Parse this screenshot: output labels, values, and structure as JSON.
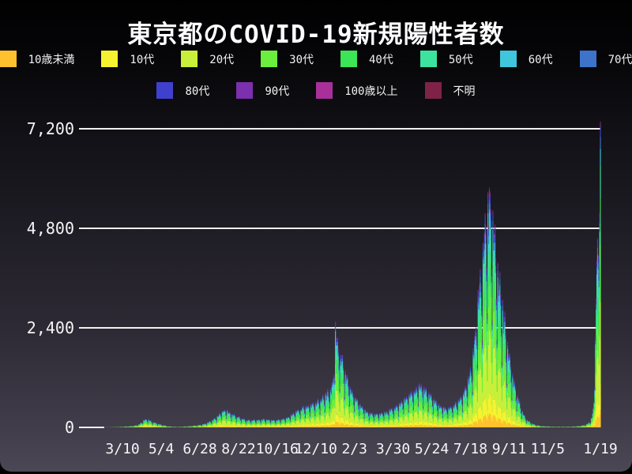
{
  "title": "東京都のCOVID-19新規陽性者数",
  "legend": {
    "rows": [
      [
        {
          "label": "10歳未満",
          "color": "#ffc22e"
        },
        {
          "label": "10代",
          "color": "#f7f22f"
        },
        {
          "label": "20代",
          "color": "#c8f03a"
        },
        {
          "label": "30代",
          "color": "#6cee3c"
        },
        {
          "label": "40代",
          "color": "#3be556"
        },
        {
          "label": "50代",
          "color": "#3ce39e"
        },
        {
          "label": "60代",
          "color": "#3fc6dd"
        },
        {
          "label": "70代",
          "color": "#3d74ca"
        }
      ],
      [
        {
          "label": "80代",
          "color": "#4040cf"
        },
        {
          "label": "90代",
          "color": "#7c2fae"
        },
        {
          "label": "100歳以上",
          "color": "#a9309b"
        },
        {
          "label": "不明",
          "color": "#7e2347"
        }
      ]
    ]
  },
  "chart_data": {
    "type": "area",
    "stacked": true,
    "title": "東京都のCOVID-19新規陽性者数",
    "xlabel": "",
    "ylabel": "",
    "ylim": [
      0,
      7200
    ],
    "grid": true,
    "legend_position": "top",
    "yticks": [
      0,
      2400,
      4800,
      7200
    ],
    "ytick_labels": [
      "0",
      "2,400",
      "4,800",
      "7,200"
    ],
    "xtick_labels": [
      "3/10",
      "5/4",
      "6/28",
      "8/22",
      "10/16",
      "12/10",
      "2/3",
      "3/30",
      "5/24",
      "7/18",
      "9/11",
      "11/5",
      "1/19"
    ],
    "xtick_days": [
      0,
      55,
      110,
      165,
      220,
      275,
      330,
      385,
      440,
      495,
      550,
      605,
      680
    ],
    "x_unit": "days relative to first tick (3/10)",
    "day_range": [
      -62,
      680
    ],
    "series_order": [
      "10歳未満",
      "10代",
      "20代",
      "30代",
      "40代",
      "50代",
      "60代",
      "70代",
      "80代",
      "90代",
      "100歳以上",
      "不明"
    ],
    "series_colors": [
      "#ffc22e",
      "#f7f22f",
      "#c8f03a",
      "#6cee3c",
      "#3be556",
      "#3ce39e",
      "#3fc6dd",
      "#3d74ca",
      "#4040cf",
      "#7c2fae",
      "#a9309b",
      "#7e2347"
    ],
    "age_shares": [
      0.058,
      0.085,
      0.265,
      0.19,
      0.148,
      0.112,
      0.052,
      0.04,
      0.028,
      0.013,
      0.001,
      0.008
    ],
    "total_trend_keypoints": [
      [
        -62,
        0
      ],
      [
        -52,
        1
      ],
      [
        -40,
        1
      ],
      [
        -28,
        2
      ],
      [
        -16,
        5
      ],
      [
        -8,
        9
      ],
      [
        0,
        15
      ],
      [
        8,
        24
      ],
      [
        16,
        36
      ],
      [
        24,
        70
      ],
      [
        31,
        170
      ],
      [
        36,
        178
      ],
      [
        42,
        130
      ],
      [
        50,
        85
      ],
      [
        56,
        58
      ],
      [
        64,
        28
      ],
      [
        72,
        16
      ],
      [
        80,
        12
      ],
      [
        88,
        19
      ],
      [
        97,
        31
      ],
      [
        105,
        45
      ],
      [
        113,
        62
      ],
      [
        120,
        100
      ],
      [
        127,
        150
      ],
      [
        134,
        230
      ],
      [
        140,
        320
      ],
      [
        144,
        390
      ],
      [
        149,
        360
      ],
      [
        155,
        300
      ],
      [
        162,
        250
      ],
      [
        170,
        195
      ],
      [
        178,
        160
      ],
      [
        186,
        165
      ],
      [
        194,
        172
      ],
      [
        202,
        178
      ],
      [
        210,
        168
      ],
      [
        218,
        160
      ],
      [
        226,
        180
      ],
      [
        234,
        215
      ],
      [
        242,
        290
      ],
      [
        250,
        380
      ],
      [
        258,
        440
      ],
      [
        266,
        490
      ],
      [
        274,
        540
      ],
      [
        281,
        600
      ],
      [
        287,
        680
      ],
      [
        293,
        780
      ],
      [
        297,
        850
      ],
      [
        300,
        1100
      ],
      [
        303,
        2250
      ],
      [
        305,
        1950
      ],
      [
        308,
        1700
      ],
      [
        312,
        1500
      ],
      [
        317,
        1200
      ],
      [
        322,
        950
      ],
      [
        328,
        720
      ],
      [
        334,
        580
      ],
      [
        340,
        470
      ],
      [
        347,
        350
      ],
      [
        354,
        310
      ],
      [
        361,
        290
      ],
      [
        368,
        305
      ],
      [
        375,
        340
      ],
      [
        382,
        395
      ],
      [
        389,
        455
      ],
      [
        396,
        545
      ],
      [
        403,
        645
      ],
      [
        410,
        740
      ],
      [
        417,
        840
      ],
      [
        424,
        950
      ],
      [
        428,
        880
      ],
      [
        434,
        760
      ],
      [
        441,
        640
      ],
      [
        448,
        520
      ],
      [
        455,
        440
      ],
      [
        462,
        405
      ],
      [
        469,
        455
      ],
      [
        476,
        545
      ],
      [
        483,
        690
      ],
      [
        489,
        880
      ],
      [
        494,
        1150
      ],
      [
        498,
        1500
      ],
      [
        502,
        2000
      ],
      [
        506,
        2800
      ],
      [
        510,
        3400
      ],
      [
        514,
        4100
      ],
      [
        518,
        4650
      ],
      [
        521,
        5000
      ],
      [
        523,
        4900
      ],
      [
        526,
        4650
      ],
      [
        530,
        4100
      ],
      [
        534,
        3550
      ],
      [
        538,
        3000
      ],
      [
        542,
        2500
      ],
      [
        547,
        1900
      ],
      [
        552,
        1400
      ],
      [
        557,
        1000
      ],
      [
        562,
        700
      ],
      [
        567,
        430
      ],
      [
        572,
        250
      ],
      [
        577,
        150
      ],
      [
        582,
        92
      ],
      [
        588,
        55
      ],
      [
        594,
        36
      ],
      [
        600,
        26
      ],
      [
        607,
        20
      ],
      [
        614,
        16
      ],
      [
        621,
        14
      ],
      [
        628,
        14
      ],
      [
        635,
        15
      ],
      [
        642,
        20
      ],
      [
        648,
        28
      ],
      [
        654,
        42
      ],
      [
        659,
        62
      ],
      [
        663,
        95
      ],
      [
        666,
        150
      ],
      [
        668,
        240
      ],
      [
        670,
        420
      ],
      [
        671,
        620
      ]
    ],
    "daily_exact_overrides": [
      [
        672,
        962
      ],
      [
        673,
        2198
      ],
      [
        674,
        3124
      ],
      [
        675,
        4051
      ],
      [
        676,
        4561
      ],
      [
        677,
        4172
      ],
      [
        678,
        3719
      ],
      [
        679,
        5185
      ],
      [
        680,
        7377
      ]
    ],
    "weekday_factors": [
      0.85,
      0.58,
      1.14,
      1.02,
      1.12,
      1.18,
      1.05
    ],
    "peak_annotations": [
      {
        "day": 303,
        "approx_total": 2520
      },
      {
        "day": 521,
        "approx_total": 5900
      },
      {
        "day": 680,
        "total": 7377
      }
    ]
  },
  "colors": {
    "background_top": "#010102",
    "background_bottom": "#4b4754",
    "gridline": "#f0f0f0",
    "text": "#f5f5f5"
  }
}
